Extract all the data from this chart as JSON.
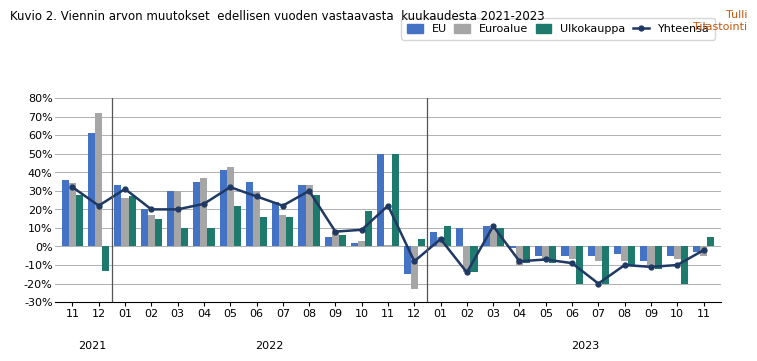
{
  "title": "Kuvio 2. Viennin arvon muutokset  edellisen vuoden vastaavasta  kuukaudesta 2021-2023",
  "subtitle": "Tulli\nTilastointi",
  "x_tick_labels": [
    "11",
    "12",
    "01",
    "02",
    "03",
    "04",
    "05",
    "06",
    "07",
    "08",
    "09",
    "10",
    "11",
    "12",
    "01",
    "02",
    "03",
    "04",
    "05",
    "06",
    "07",
    "08",
    "09",
    "10",
    "11"
  ],
  "EU": [
    36,
    61,
    33,
    20,
    30,
    35,
    41,
    35,
    24,
    33,
    5,
    2,
    50,
    -15,
    8,
    10,
    11,
    -1,
    -5,
    -5,
    -5,
    -4,
    -8,
    -5,
    -3
  ],
  "Euroalue": [
    34,
    72,
    26,
    17,
    30,
    37,
    43,
    30,
    17,
    33,
    9,
    3,
    1,
    -23,
    5,
    -14,
    9,
    -10,
    -8,
    -7,
    -8,
    -8,
    -10,
    -7,
    -5
  ],
  "Ulkokauppa": [
    28,
    -13,
    27,
    15,
    10,
    10,
    22,
    16,
    16,
    28,
    6,
    19,
    50,
    4,
    11,
    -14,
    10,
    -9,
    -9,
    -20,
    -20,
    -10,
    -12,
    -20,
    5
  ],
  "Yhteensa": [
    32,
    22,
    31,
    20,
    20,
    23,
    32,
    27,
    22,
    30,
    8,
    9,
    22,
    -8,
    4,
    -14,
    11,
    -8,
    -7,
    -9,
    -20,
    -10,
    -11,
    -10,
    -2
  ],
  "ylim": [
    -30,
    80
  ],
  "yticks": [
    -30,
    -20,
    -10,
    0,
    10,
    20,
    30,
    40,
    50,
    60,
    70,
    80
  ],
  "bar_width": 0.27,
  "EU_color": "#4472C4",
  "Euroalue_color": "#A6A6A6",
  "Ulkokauppa_color": "#1F7A6E",
  "Yhteensa_color": "#1F3864",
  "legend_entries": [
    "EU",
    "Euroalue",
    "Ulkokauppa",
    "Yhteensä"
  ],
  "year_labels": [
    [
      "2021",
      0.75
    ],
    [
      "2022",
      7.5
    ],
    [
      "2023",
      19.5
    ]
  ],
  "dividers": [
    1.5,
    13.5
  ]
}
